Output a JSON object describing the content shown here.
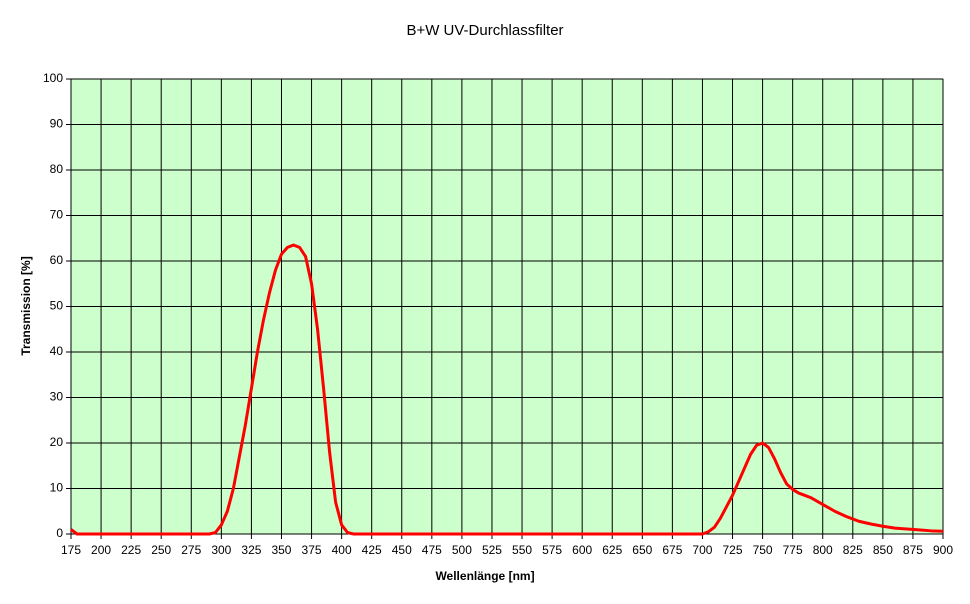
{
  "chart_data": {
    "type": "line",
    "title": "B+W UV-Durchlassfilter",
    "x_label": "Wellenlänge [nm]",
    "y_label": "Transmission [%]",
    "x": [
      175,
      180,
      290,
      295,
      300,
      305,
      310,
      315,
      320,
      325,
      330,
      335,
      340,
      345,
      350,
      355,
      360,
      365,
      370,
      375,
      380,
      385,
      390,
      395,
      400,
      405,
      410,
      700,
      705,
      710,
      715,
      720,
      725,
      730,
      735,
      740,
      745,
      750,
      755,
      760,
      765,
      770,
      775,
      780,
      785,
      790,
      800,
      810,
      820,
      830,
      840,
      850,
      860,
      870,
      880,
      890,
      900
    ],
    "series": [
      {
        "color": "#ff0000",
        "values": [
          1,
          0,
          0,
          0.3,
          2,
          5,
          10,
          17,
          24,
          32,
          40,
          47,
          53,
          58,
          61.5,
          63,
          63.5,
          63,
          61,
          55,
          45,
          32,
          18,
          7,
          2,
          0.3,
          0,
          0,
          0.5,
          1.5,
          3.5,
          6,
          8.5,
          11.5,
          14.5,
          17.5,
          19.5,
          20,
          19,
          16.5,
          13.5,
          11,
          9.8,
          9,
          8.5,
          8,
          6.5,
          5,
          3.8,
          2.8,
          2.2,
          1.7,
          1.3,
          1.1,
          0.9,
          0.7,
          0.6
        ]
      }
    ],
    "xlim": [
      175,
      900
    ],
    "xticks": [
      175,
      200,
      225,
      250,
      275,
      300,
      325,
      350,
      375,
      400,
      425,
      450,
      475,
      500,
      525,
      550,
      575,
      600,
      625,
      650,
      675,
      700,
      725,
      750,
      775,
      800,
      825,
      850,
      875,
      900
    ],
    "ylim": [
      0,
      100
    ],
    "yticks": [
      0,
      10,
      20,
      30,
      40,
      50,
      60,
      70,
      80,
      90,
      100
    ],
    "grid": true,
    "plot_background": "#ccffcc"
  }
}
